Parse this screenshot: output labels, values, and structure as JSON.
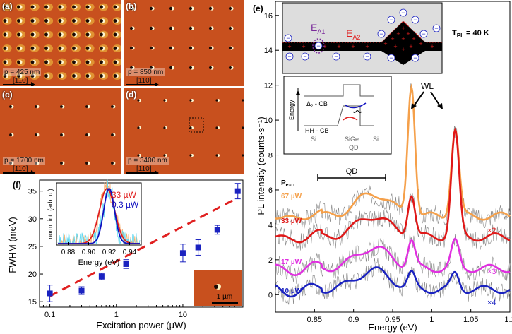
{
  "panels": {
    "a": {
      "letter": "(a)",
      "period": "p = 425 nm",
      "direction": "[110]"
    },
    "b": {
      "letter": "(b)",
      "period": "p = 850 nm",
      "direction": "[110]"
    },
    "c": {
      "letter": "(c)",
      "period": "p = 1700 nm",
      "direction": "[110]"
    },
    "d": {
      "letter": "(d)",
      "period": "p = 3400 nm",
      "direction": "[110]"
    }
  },
  "panel_f": {
    "letter": "(f)",
    "scalebar": "1 µm",
    "inset_xlabel": "Energy (eV)",
    "inset_ylabel": "norm. int. (arb. u.)",
    "inset_legend": [
      {
        "label": "33 µW",
        "color": "#e02020"
      },
      {
        "label": "0.3 µW",
        "color": "#1010c0"
      }
    ],
    "inset_xticks": [
      "0.88",
      "0.90",
      "0.92",
      "0.94"
    ]
  },
  "panel_e": {
    "letter": "(e)",
    "tpl_label": "T",
    "tpl_sub": "PL",
    "tpl_value": " = 40 K",
    "ea1": "E",
    "ea1_sub": "A1",
    "ea2": "E",
    "ea2_sub": "A2",
    "band_labels": {
      "cb": "Δ",
      "cb_sub": "2",
      "cb_rest": " - CB",
      "hh": "HH - CB",
      "energy": "Energy",
      "si_left": "Si",
      "sige": "SiGe",
      "qd": "QD",
      "si_right": "Si"
    },
    "wl_label": "WL",
    "qd_label": "QD",
    "pexc_label": "P",
    "pexc_sub": "exc",
    "powers": [
      {
        "label": "67 µW",
        "color": "#f5a04a"
      },
      {
        "label": "33 µW",
        "color": "#e01818"
      },
      {
        "label": "17 µW",
        "color": "#e030e0"
      },
      {
        "label": "10 µW",
        "color": "#1a22c0"
      }
    ],
    "multipliers": [
      "×2",
      "×3",
      "×4"
    ]
  },
  "chart_data": [
    {
      "type": "scatter",
      "title": "",
      "xlabel": "Excitation power (µW)",
      "ylabel": "FWHM (meV)",
      "xscale": "log",
      "xlim": [
        0.07,
        80
      ],
      "ylim": [
        14,
        37
      ],
      "xticks": [
        "0.1",
        "1",
        "10"
      ],
      "yticks": [
        "15",
        "20",
        "25",
        "30",
        "35"
      ],
      "x": [
        0.1,
        0.3,
        0.6,
        1.4,
        10,
        17,
        33,
        67
      ],
      "y": [
        16.5,
        17.0,
        19.6,
        21.8,
        23.8,
        24.8,
        28.0,
        35.0
      ],
      "yerr": [
        1.5,
        0.7,
        0.6,
        0.8,
        1.6,
        1.4,
        0.8,
        1.4
      ],
      "fit": {
        "x0": 0.1,
        "y0": 16.0,
        "x1": 67,
        "y1": 33.8
      }
    },
    {
      "type": "line",
      "title": "",
      "xlabel": "Energy (eV)",
      "ylabel": "PL intensity (counts·s⁻¹)",
      "xlim": [
        0.8,
        1.1
      ],
      "ylim": [
        -1,
        16.8
      ],
      "xticks": [
        "0.85",
        "0.9",
        "0.95",
        "1",
        "1.05",
        "1.1"
      ],
      "yticks": [
        "0",
        "2",
        "4",
        "6",
        "8",
        "10",
        "12",
        "14",
        "16"
      ],
      "series": [
        {
          "name": "67 µW",
          "offset": 4.5,
          "qd_amp": 1.3,
          "p1": 7.5,
          "p2": 5.0
        },
        {
          "name": "33 µW",
          "offset": 3.3,
          "qd_amp": 1.2,
          "p1": 2.4,
          "p2": 6.0
        },
        {
          "name": "17 µW",
          "offset": 1.5,
          "qd_amp": 1.2,
          "p1": 1.5,
          "p2": 1.5
        },
        {
          "name": "10 µW",
          "offset": 0.3,
          "qd_amp": 1.1,
          "p1": 0.8,
          "p2": 0.9
        }
      ]
    }
  ]
}
